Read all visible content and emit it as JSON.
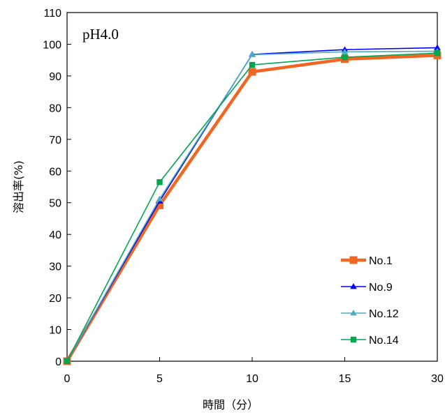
{
  "chart_data": {
    "type": "line",
    "title": "",
    "annotation": "pH4.0",
    "xlabel": "時間（分）",
    "ylabel": "溶出率(%)",
    "x": [
      0,
      5,
      10,
      15,
      30
    ],
    "x_tick_labels": [
      "0",
      "5",
      "10",
      "15",
      "30"
    ],
    "y_ticks": [
      0,
      10,
      20,
      30,
      40,
      50,
      60,
      70,
      80,
      90,
      100,
      110
    ],
    "ylim": [
      0,
      110
    ],
    "grid": false,
    "legend_position": "bottom-right",
    "series": [
      {
        "name": "No.1",
        "values": [
          0,
          49.2,
          91.3,
          95.3,
          96.5
        ],
        "color": "#F26522",
        "marker": "square"
      },
      {
        "name": "No.9",
        "values": [
          0,
          50.5,
          96.8,
          98.3,
          98.9
        ],
        "color": "#0000FF",
        "marker": "triangle"
      },
      {
        "name": "No.12",
        "values": [
          0,
          51.2,
          96.7,
          97.6,
          97.8
        ],
        "color": "#4BACC6",
        "marker": "triangle"
      },
      {
        "name": "No.14",
        "values": [
          0,
          56.5,
          93.5,
          95.9,
          97.2
        ],
        "color": "#00A651",
        "marker": "square"
      }
    ]
  }
}
